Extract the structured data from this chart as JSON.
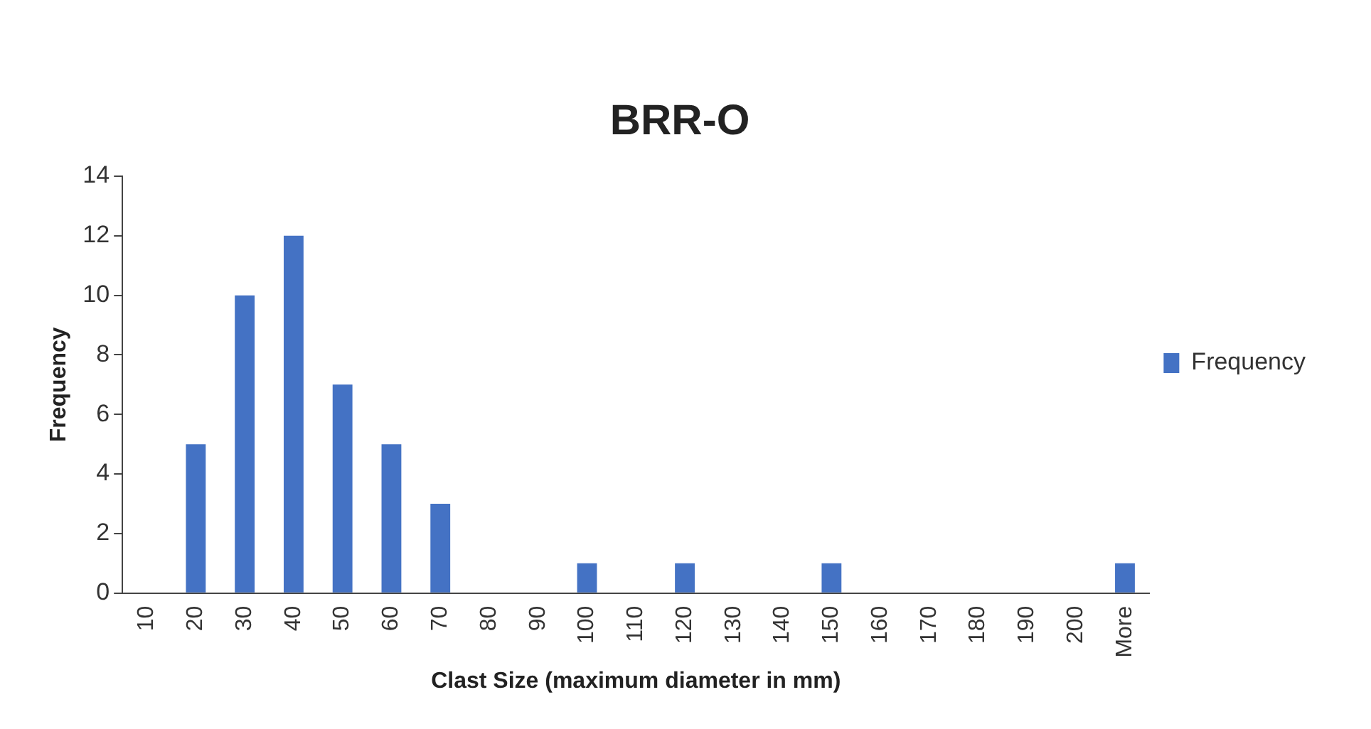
{
  "chart_data": {
    "type": "bar",
    "title": "BRR-O",
    "xlabel": "Clast Size (maximum diameter in mm)",
    "ylabel": "Frequency",
    "categories": [
      "10",
      "20",
      "30",
      "40",
      "50",
      "60",
      "70",
      "80",
      "90",
      "100",
      "110",
      "120",
      "130",
      "140",
      "150",
      "160",
      "170",
      "180",
      "190",
      "200",
      "More"
    ],
    "series": [
      {
        "name": "Frequency",
        "color": "#4472c4",
        "values": [
          0,
          5,
          10,
          12,
          7,
          5,
          3,
          0,
          0,
          1,
          0,
          1,
          0,
          0,
          1,
          0,
          0,
          0,
          0,
          0,
          1
        ]
      }
    ],
    "ylim": [
      0,
      14
    ],
    "yticks": [
      0,
      2,
      4,
      6,
      8,
      10,
      12,
      14
    ],
    "grid": false,
    "legend": "right"
  }
}
